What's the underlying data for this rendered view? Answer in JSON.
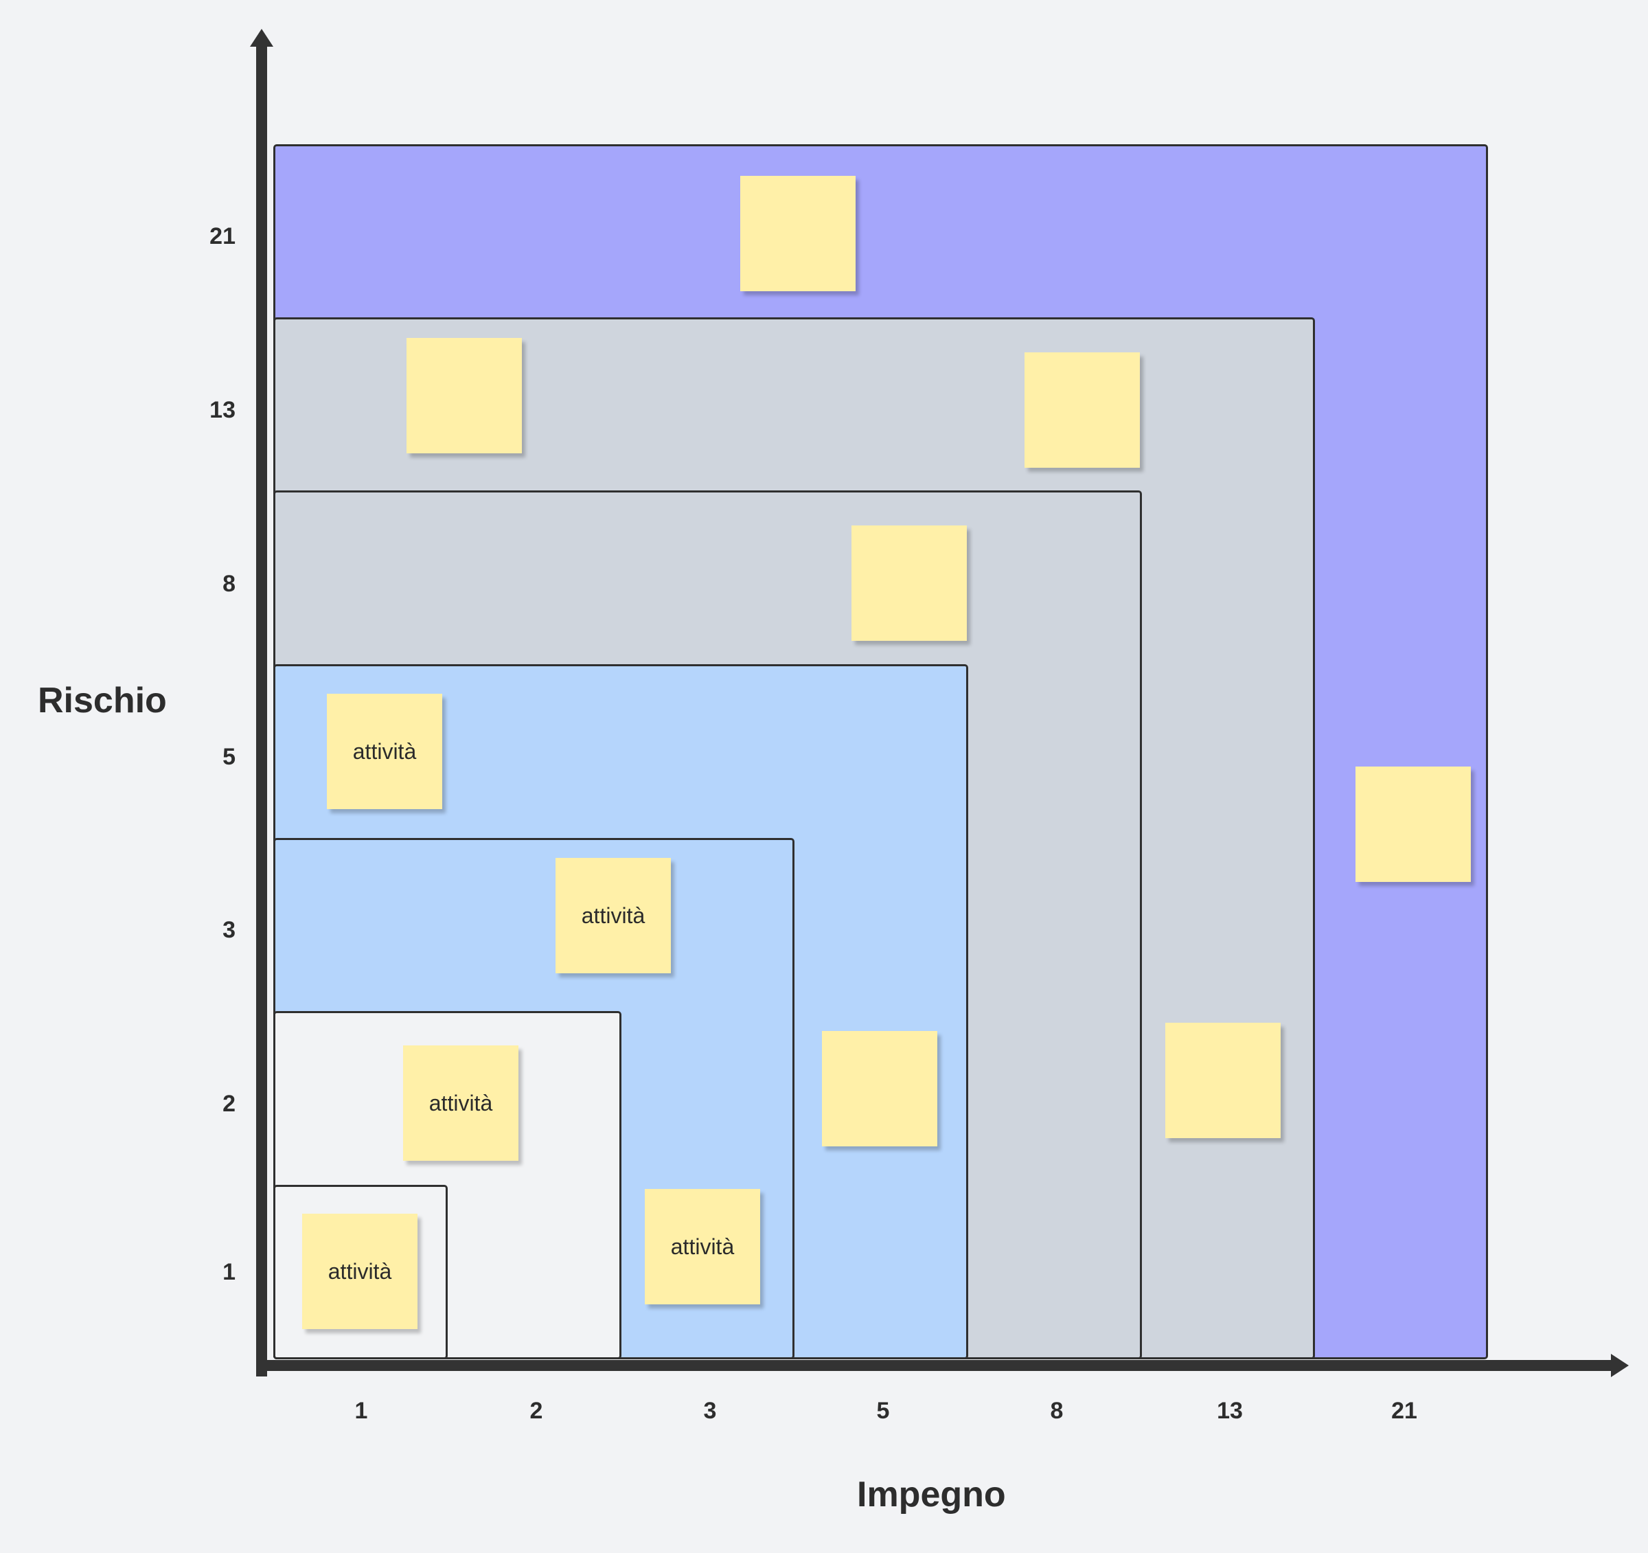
{
  "diagram": {
    "y_axis_title": "Rischio",
    "x_axis_title": "Impegno",
    "y_ticks": [
      "21",
      "13",
      "8",
      "5",
      "3",
      "2",
      "1"
    ],
    "x_ticks": [
      "1",
      "2",
      "3",
      "5",
      "8",
      "13",
      "21"
    ],
    "colors": {
      "zone_21": "#a5a6fb",
      "zone_13": "#cfd5dd",
      "zone_8": "#cfd5dd",
      "zone_5": "#b5d5fc",
      "zone_3": "#b5d5fc",
      "zone_2": "#f2f3f5",
      "zone_1": "#f2f3f5",
      "sticky_note": "#fff0a8",
      "axis": "#333333"
    },
    "sticky_notes": [
      {
        "label": ""
      },
      {
        "label": ""
      },
      {
        "label": ""
      },
      {
        "label": ""
      },
      {
        "label": "attività"
      },
      {
        "label": "attività"
      },
      {
        "label": ""
      },
      {
        "label": "attività"
      },
      {
        "label": "attività"
      },
      {
        "label": "attività"
      },
      {
        "label": ""
      },
      {
        "label": ""
      }
    ]
  }
}
